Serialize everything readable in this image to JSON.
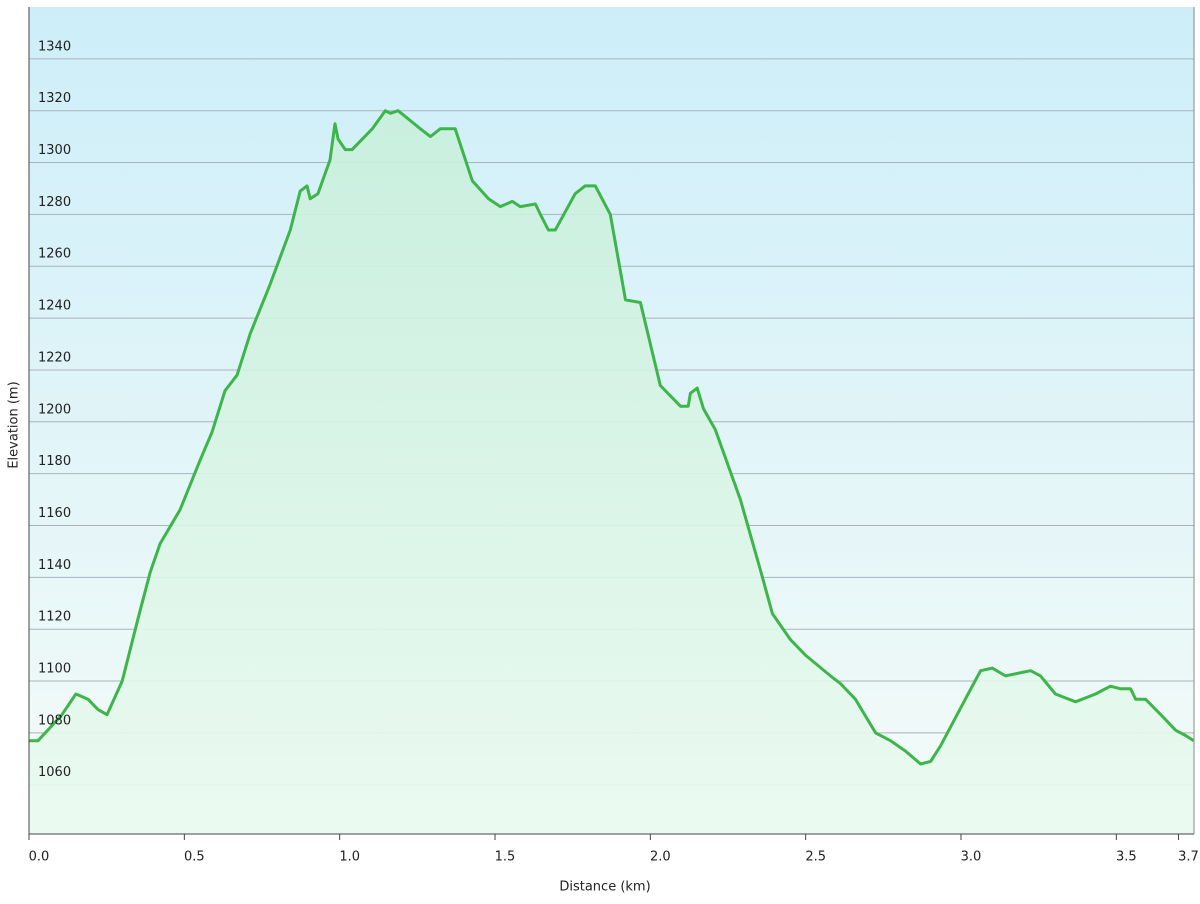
{
  "chart_data": {
    "type": "area",
    "xlabel": "Distance  (km)",
    "ylabel": "Elevation (m)",
    "xlim": [
      0,
      3.75
    ],
    "ylim": [
      1041,
      1360
    ],
    "xticks": [
      {
        "value": 0,
        "label": "0.0"
      },
      0.5,
      {
        "value": 1,
        "label": "1.0"
      },
      1.5,
      {
        "value": 2,
        "label": "2.0"
      },
      2.5,
      {
        "value": 3,
        "label": "3.0"
      },
      3.5,
      3.7
    ],
    "yticks": [
      1060,
      1080,
      1100,
      1120,
      1140,
      1160,
      1180,
      1200,
      1220,
      1240,
      1260,
      1280,
      1300,
      1320,
      1340
    ],
    "grid": true,
    "color": "#3db54a",
    "x": [
      0,
      0.029,
      0.068,
      0.106,
      0.151,
      0.19,
      0.222,
      0.251,
      0.3,
      0.351,
      0.39,
      0.422,
      0.486,
      0.55,
      0.589,
      0.631,
      0.67,
      0.712,
      0.776,
      0.841,
      0.873,
      0.895,
      0.905,
      0.93,
      0.969,
      0.985,
      0.995,
      1.018,
      1.04,
      1.105,
      1.147,
      1.163,
      1.188,
      1.26,
      1.292,
      1.324,
      1.372,
      1.427,
      1.479,
      1.517,
      1.556,
      1.581,
      1.63,
      1.646,
      1.672,
      1.694,
      1.758,
      1.79,
      1.823,
      1.871,
      1.92,
      1.968,
      2.032,
      2.097,
      2.122,
      2.129,
      2.151,
      2.171,
      2.209,
      2.29,
      2.354,
      2.393,
      2.451,
      2.499,
      2.58,
      2.612,
      2.66,
      2.725,
      2.773,
      2.821,
      2.87,
      2.902,
      2.934,
      3.014,
      3.063,
      3.101,
      3.143,
      3.224,
      3.256,
      3.304,
      3.369,
      3.433,
      3.481,
      3.514,
      3.546,
      3.562,
      3.594,
      3.643,
      3.691,
      3.723,
      3.749
    ],
    "values": [
      1077,
      1077,
      1082,
      1087,
      1095,
      1093,
      1089,
      1087,
      1100,
      1124,
      1142,
      1153,
      1166,
      1185,
      1196,
      1212,
      1218,
      1234,
      1253,
      1274,
      1289,
      1291,
      1286,
      1288,
      1301,
      1315,
      1309,
      1305,
      1305,
      1313,
      1320,
      1319,
      1320,
      1313,
      1310,
      1313,
      1313,
      1293,
      1286,
      1283,
      1285,
      1283,
      1284,
      1280,
      1274,
      1274,
      1288,
      1291,
      1291,
      1280,
      1247,
      1246,
      1214,
      1206,
      1206,
      1211,
      1213,
      1205,
      1197,
      1170,
      1143,
      1126,
      1116,
      1110,
      1102,
      1099,
      1093,
      1080,
      1077,
      1073,
      1068,
      1069,
      1075,
      1093,
      1104,
      1105,
      1102,
      1104,
      1102,
      1095,
      1092,
      1095,
      1098,
      1097,
      1097,
      1093,
      1093,
      1087,
      1081,
      1079,
      1077
    ]
  }
}
